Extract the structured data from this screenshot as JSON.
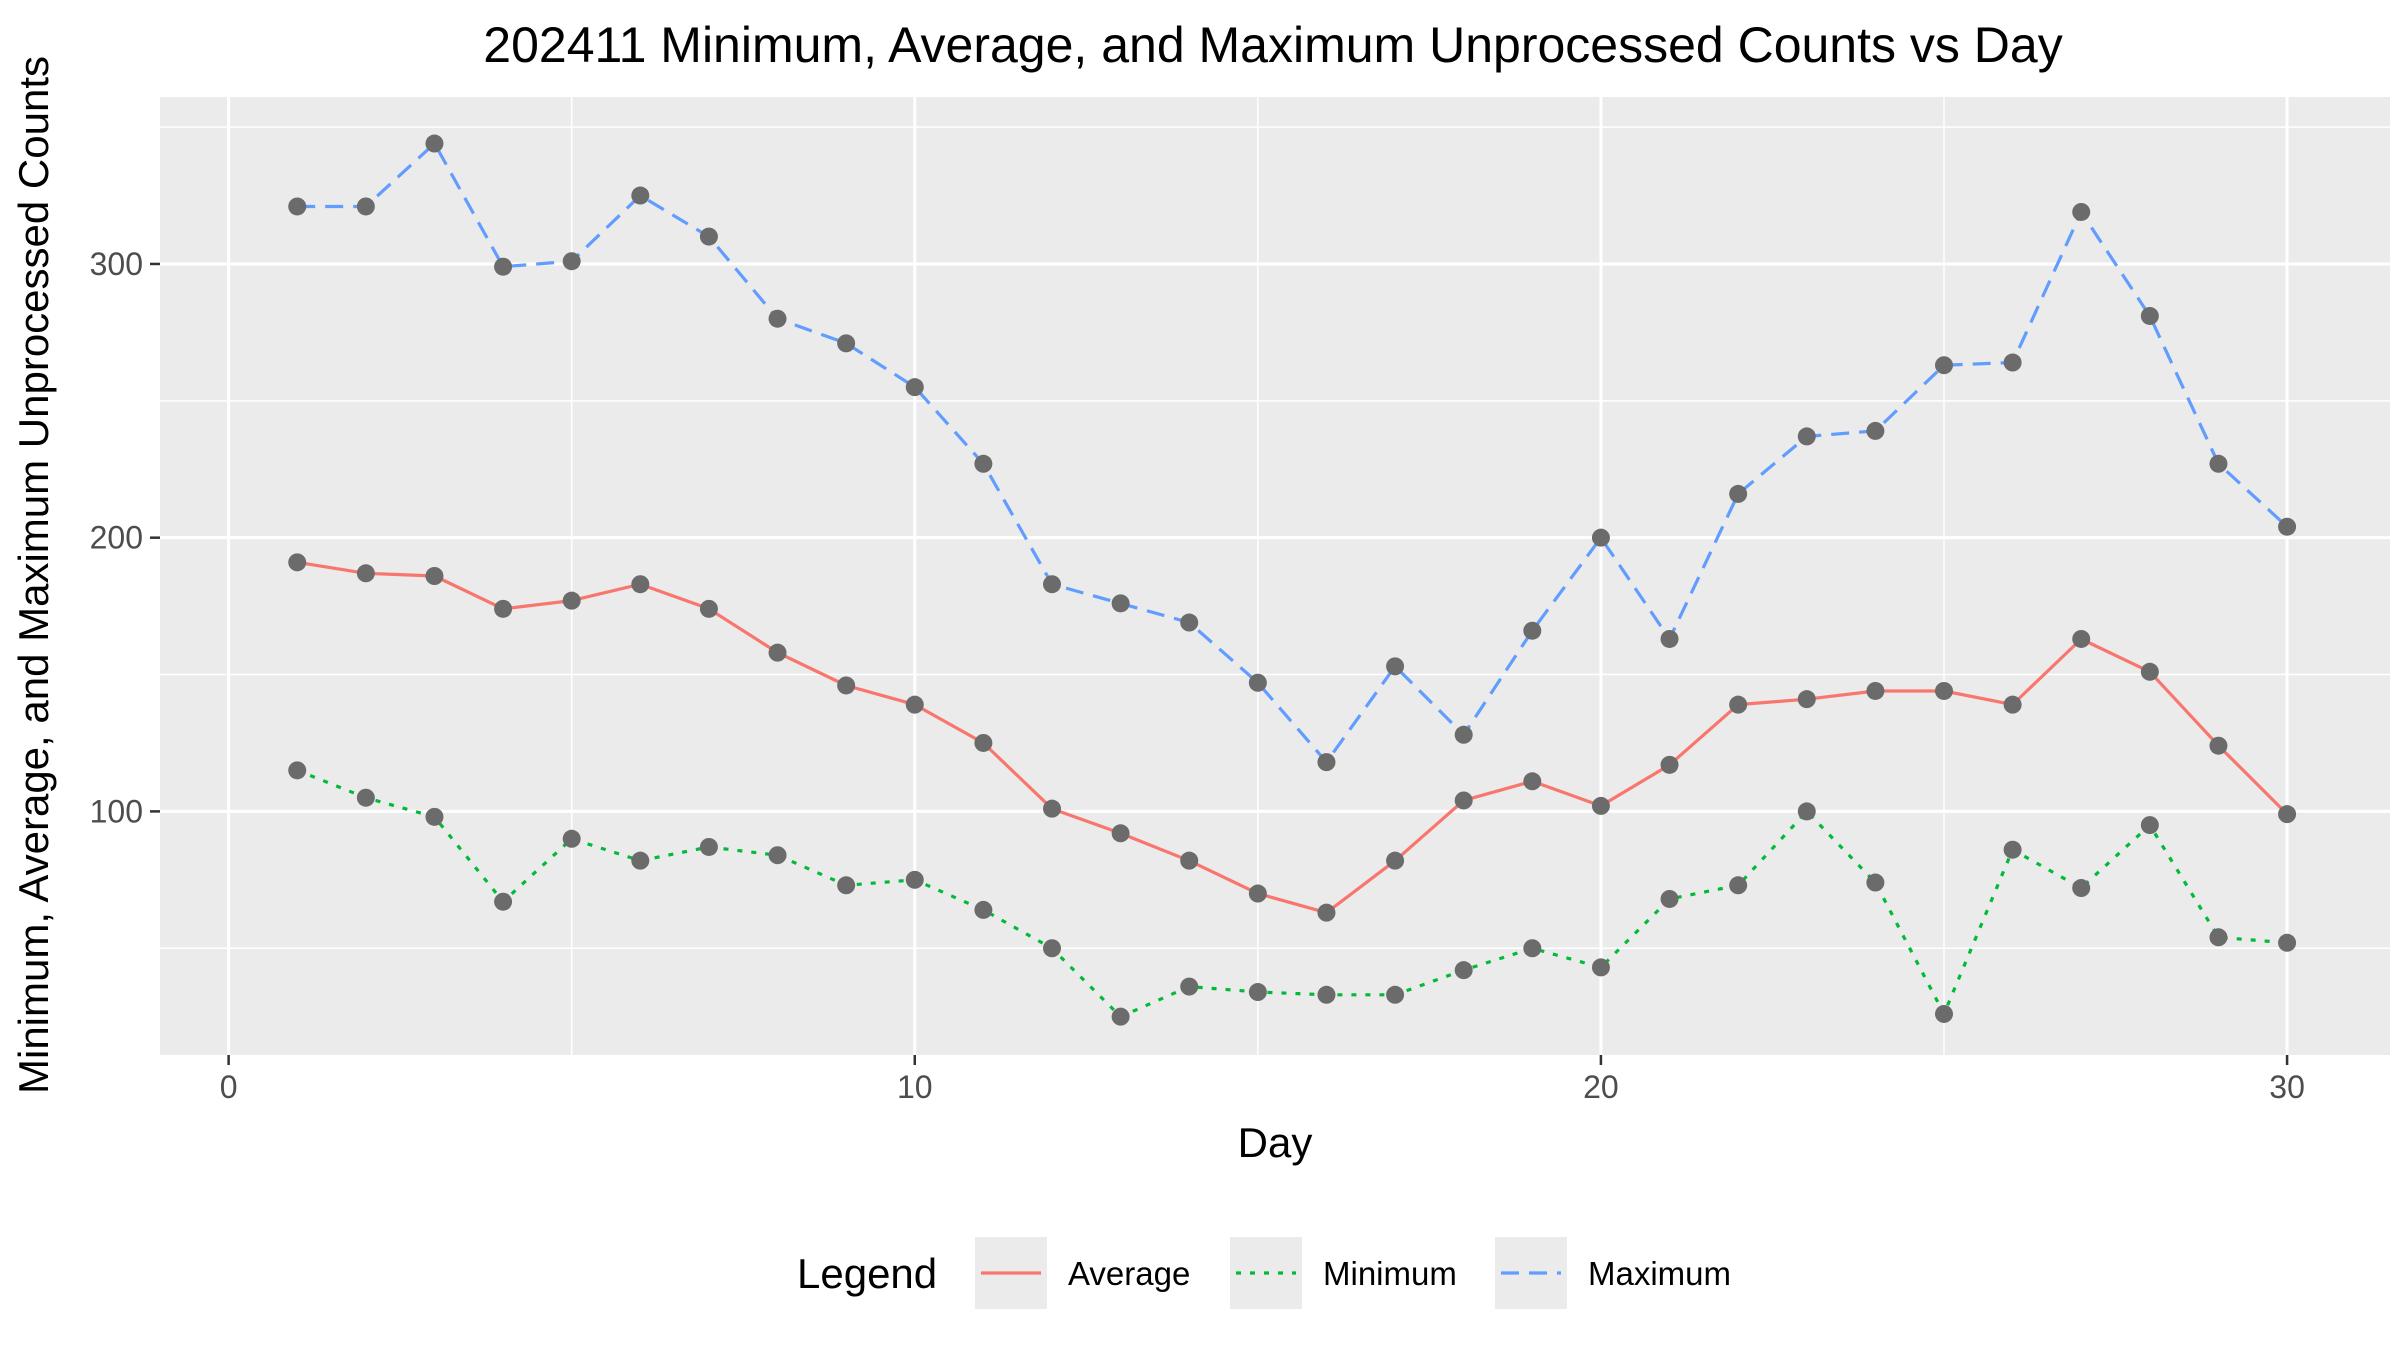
{
  "chart_data": {
    "type": "line",
    "title": "202411 Minimum, Average, and Maximum Unprocessed Counts vs Day",
    "xlabel": "Day",
    "ylabel": "Minimum, Average, and Maximum Unprocessed Counts",
    "xlim": [
      -1,
      31.5
    ],
    "ylim": [
      11,
      361
    ],
    "x_ticks": [
      0,
      10,
      20,
      30
    ],
    "y_ticks": [
      100,
      200,
      300
    ],
    "grid": true,
    "legend": {
      "title": "Legend",
      "position": "bottom"
    },
    "x": [
      1,
      2,
      3,
      4,
      5,
      6,
      7,
      8,
      9,
      10,
      11,
      12,
      13,
      14,
      15,
      16,
      17,
      18,
      19,
      20,
      21,
      22,
      23,
      24,
      25,
      26,
      27,
      28,
      29,
      30
    ],
    "series": [
      {
        "name": "Average",
        "color": "#F8766D",
        "linestyle": "solid",
        "values": [
          191,
          187,
          186,
          174,
          177,
          183,
          174,
          158,
          146,
          139,
          125,
          101,
          92,
          82,
          70,
          63,
          82,
          104,
          111,
          102,
          117,
          139,
          141,
          144,
          144,
          139,
          163,
          151,
          124,
          99
        ]
      },
      {
        "name": "Minimum",
        "color": "#00BA38",
        "linestyle": "dotted",
        "values": [
          115,
          105,
          98,
          67,
          90,
          82,
          87,
          84,
          73,
          75,
          64,
          50,
          25,
          36,
          34,
          33,
          33,
          42,
          50,
          43,
          68,
          73,
          100,
          74,
          26,
          86,
          72,
          95,
          54,
          52
        ]
      },
      {
        "name": "Maximum",
        "color": "#619CFF",
        "linestyle": "dashed",
        "values": [
          321,
          321,
          344,
          299,
          301,
          325,
          310,
          280,
          271,
          255,
          227,
          183,
          176,
          169,
          147,
          118,
          153,
          128,
          166,
          200,
          163,
          216,
          237,
          239,
          263,
          264,
          319,
          281,
          227,
          204
        ]
      }
    ],
    "point_color": "#6b6b6b",
    "panel_color": "#EBEBEB",
    "grid_color": "#FFFFFF"
  }
}
